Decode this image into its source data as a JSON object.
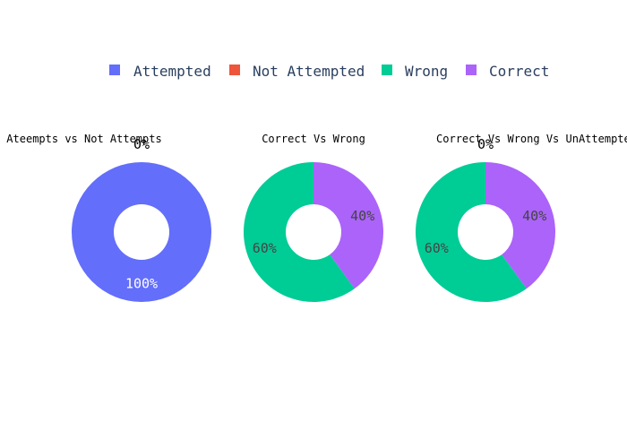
{
  "chart_data": {
    "type": "pie",
    "hole": true,
    "legend": {
      "placement": "top-center",
      "orientation": "horizontal",
      "entries": [
        {
          "name": "Attempted",
          "color": "#636efa"
        },
        {
          "name": "Not Attempted",
          "color": "#ef553b"
        },
        {
          "name": "Wrong",
          "color": "#00cc96"
        },
        {
          "name": "Correct",
          "color": "#ab63fa"
        }
      ]
    },
    "charts": [
      {
        "title": "Ateempts vs Not Attempts",
        "slices": [
          {
            "label": "Attempted",
            "value": 100,
            "text": "100%",
            "color": "#636efa"
          },
          {
            "label": "Not Attempted",
            "value": 0,
            "text": "0%",
            "color": "#ef553b"
          }
        ]
      },
      {
        "title": "Correct Vs Wrong",
        "slices": [
          {
            "label": "Wrong",
            "value": 60,
            "text": "60%",
            "color": "#00cc96"
          },
          {
            "label": "Correct",
            "value": 40,
            "text": "40%",
            "color": "#ab63fa"
          }
        ]
      },
      {
        "title": "Correct Vs Wrong Vs UnAttempted",
        "slices": [
          {
            "label": "Wrong",
            "value": 60,
            "text": "60%",
            "color": "#00cc96"
          },
          {
            "label": "Correct",
            "value": 40,
            "text": "40%",
            "color": "#ab63fa"
          },
          {
            "label": "Not Attempted",
            "value": 0,
            "text": "0%",
            "color": "#ef553b"
          }
        ]
      }
    ]
  }
}
